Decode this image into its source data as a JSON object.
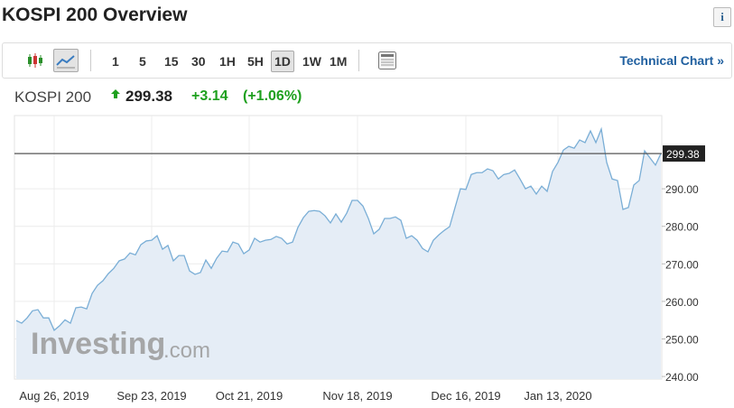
{
  "header": {
    "title": "KOSPI 200 Overview",
    "info": "i"
  },
  "toolbar": {
    "intervals": [
      "1",
      "5",
      "15",
      "30",
      "1H",
      "5H",
      "1D",
      "1W",
      "1M"
    ],
    "selected": "1D",
    "link": "Technical Chart »"
  },
  "quote": {
    "name": "KOSPI 200",
    "price": "299.38",
    "change": "+3.14",
    "change_pct": "(+1.06%)"
  },
  "watermark": {
    "brand": "Investing",
    "suffix": ".com"
  },
  "chart_data": {
    "type": "area",
    "color": "#7aaed6",
    "fill_color": "#e5edf6",
    "grid": true,
    "last_price": {
      "value": 299.38,
      "label": "299.38"
    },
    "ylim": [
      239.3,
      309.5
    ],
    "yticks": [
      {
        "value": 240,
        "label": "240.00"
      },
      {
        "value": 250,
        "label": "250.00"
      },
      {
        "value": 260,
        "label": "260.00"
      },
      {
        "value": 270,
        "label": "270.00"
      },
      {
        "value": 280,
        "label": "280.00"
      },
      {
        "value": 290,
        "label": "290.00"
      }
    ],
    "categories": [
      null,
      null,
      null,
      null,
      null,
      null,
      null,
      "Aug 26, 2019",
      null,
      null,
      null,
      null,
      null,
      null,
      null,
      null,
      null,
      null,
      null,
      null,
      null,
      null,
      null,
      null,
      null,
      "Sep 23, 2019",
      null,
      null,
      null,
      null,
      null,
      null,
      null,
      null,
      null,
      null,
      null,
      null,
      null,
      null,
      null,
      null,
      null,
      "Oct 21, 2019",
      null,
      null,
      null,
      null,
      null,
      null,
      null,
      null,
      null,
      null,
      null,
      null,
      null,
      null,
      null,
      null,
      null,
      null,
      null,
      "Nov 18, 2019",
      null,
      null,
      null,
      null,
      null,
      null,
      null,
      null,
      null,
      null,
      null,
      null,
      null,
      null,
      null,
      null,
      null,
      null,
      null,
      "Dec 16, 2019",
      null,
      null,
      null,
      null,
      null,
      null,
      null,
      null,
      null,
      null,
      null,
      null,
      null,
      null,
      null,
      null,
      "Jan 13, 2020",
      null,
      null,
      null,
      null,
      null,
      null,
      null,
      null,
      null,
      null,
      null,
      null,
      null,
      null,
      null,
      null,
      null,
      null,
      null
    ],
    "values": [
      254.9,
      254.2,
      255.6,
      257.5,
      257.8,
      255.6,
      255.6,
      252.3,
      253.5,
      255.1,
      254.2,
      258.3,
      258.5,
      258.0,
      262.1,
      264.3,
      265.5,
      267.4,
      268.8,
      270.8,
      271.3,
      272.9,
      272.4,
      275.1,
      276.1,
      276.3,
      277.5,
      273.9,
      274.9,
      270.8,
      272.2,
      272.2,
      268.1,
      267.2,
      267.7,
      271.0,
      268.8,
      271.5,
      273.4,
      273.2,
      275.8,
      275.3,
      272.7,
      273.7,
      276.8,
      275.8,
      276.3,
      276.5,
      277.3,
      276.8,
      275.3,
      275.8,
      279.7,
      282.3,
      284.0,
      284.2,
      284.0,
      282.8,
      280.9,
      283.3,
      281.1,
      283.5,
      286.9,
      286.9,
      285.4,
      282.1,
      278.0,
      279.2,
      282.1,
      282.1,
      282.5,
      281.6,
      276.8,
      277.5,
      276.3,
      274.1,
      273.2,
      276.3,
      277.7,
      278.9,
      279.9,
      285.0,
      290.0,
      289.8,
      293.8,
      294.3,
      294.3,
      295.3,
      294.8,
      292.6,
      293.8,
      294.1,
      295.0,
      292.6,
      290.0,
      290.7,
      288.6,
      290.7,
      289.3,
      294.6,
      297.0,
      300.3,
      301.3,
      300.8,
      303.0,
      302.3,
      305.4,
      302.3,
      305.9,
      297.0,
      292.6,
      292.2,
      284.5,
      285.0,
      291.0,
      292.2,
      300.1,
      298.2,
      296.3,
      299.38
    ]
  }
}
